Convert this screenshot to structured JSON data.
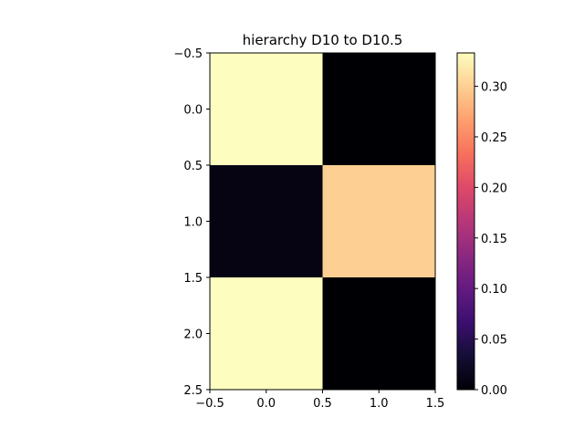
{
  "chart_data": {
    "type": "heatmap",
    "title": "hierarchy D10 to D10.5",
    "xlabel": "",
    "ylabel": "",
    "x_ticks": [
      "−0.5",
      "0.0",
      "0.5",
      "1.0",
      "1.5"
    ],
    "y_ticks": [
      "−0.5",
      "0.0",
      "0.5",
      "1.0",
      "1.5",
      "2.0",
      "2.5"
    ],
    "xlim": [
      -0.5,
      1.5
    ],
    "ylim": [
      2.5,
      -0.5
    ],
    "values": [
      [
        0.333,
        0.0
      ],
      [
        0.01,
        0.3
      ],
      [
        0.333,
        0.0
      ]
    ],
    "colormap": "magma",
    "colorbar": {
      "min": 0.0,
      "max": 0.333,
      "ticks": [
        0.0,
        0.05,
        0.1,
        0.15,
        0.2,
        0.25,
        0.3
      ],
      "tick_labels": [
        "0.00",
        "0.05",
        "0.10",
        "0.15",
        "0.20",
        "0.25",
        "0.30"
      ]
    },
    "grid": false
  }
}
